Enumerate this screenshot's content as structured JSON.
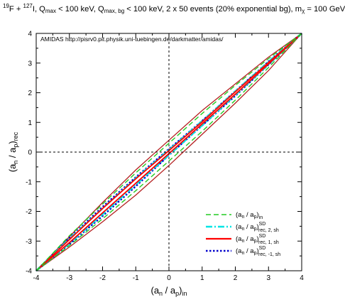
{
  "title_parts": {
    "p1": "19",
    "p2": "F + ",
    "p3": "127",
    "p4": "I, Q",
    "p5": "max",
    "p6": " < 100 keV, Q",
    "p7": "max, bg",
    "p8": " < 100 keV, 2 x 50 events (20% exponential bg), m",
    "p9": "χ",
    "p10": " = 100 GeV"
  },
  "credit": "AMIDAS   http://pisrv0.pit.physik.uni-tuebingen.de/darkmatter/amidas/",
  "colors": {
    "dark_red": "#b52020",
    "green": "#22cc22",
    "cyan": "#00e5e5",
    "red": "#ff0000",
    "blue": "#0000cc",
    "axis": "#000000"
  },
  "chart_data": {
    "type": "line",
    "xlim": [
      -4,
      4
    ],
    "ylim": [
      -4,
      4
    ],
    "xticks": [
      -4,
      -3,
      -2,
      -1,
      0,
      1,
      2,
      3,
      4
    ],
    "yticks": [
      -4,
      -3,
      -2,
      -1,
      0,
      1,
      2,
      3,
      4
    ],
    "xlabel": {
      "a": "(a",
      "b": "n",
      "c": " / a",
      "d": "p",
      "e": ")",
      "f": "in"
    },
    "ylabel": {
      "a": "(a",
      "b": "n",
      "c": " / a",
      "d": "p",
      "e": ")",
      "f": "rec"
    },
    "reference_lines": {
      "x0": 0,
      "y0": 0
    },
    "legend": [
      {
        "key": "in",
        "main": "(a",
        "s1": "n",
        "m2": " / a",
        "s2": "p",
        "m3": ")",
        "sub": "in",
        "sup": ""
      },
      {
        "key": "rec2",
        "main": "(a",
        "s1": "n",
        "m2": " / a",
        "s2": "p",
        "m3": ")",
        "sub": "rec, 2, sh",
        "sup": "SD"
      },
      {
        "key": "rec1",
        "main": "(a",
        "s1": "n",
        "m2": " / a",
        "s2": "p",
        "m3": ")",
        "sub": "rec, 1, sh",
        "sup": "SD"
      },
      {
        "key": "recm1",
        "main": "(a",
        "s1": "n",
        "m2": " / a",
        "s2": "p",
        "m3": ")",
        "sub": "rec, -1, sh",
        "sup": "SD"
      }
    ],
    "series": [
      {
        "key": "band_upper",
        "color": "#b52020",
        "style": "solid",
        "width": 1.3,
        "x": [
          -4,
          -3,
          -2,
          -1,
          0,
          1,
          2,
          3,
          4
        ],
        "y": [
          -4,
          -2.85,
          -1.7,
          -0.6,
          0.4,
          1.4,
          2.3,
          3.2,
          4
        ]
      },
      {
        "key": "band_lower",
        "color": "#b52020",
        "style": "solid",
        "width": 1.3,
        "x": [
          -4,
          -3,
          -2,
          -1,
          0,
          1,
          2,
          3,
          4
        ],
        "y": [
          -4,
          -3.2,
          -2.35,
          -1.45,
          -0.45,
          0.6,
          1.65,
          2.75,
          4
        ]
      },
      {
        "key": "blue_upper",
        "color": "#0000cc",
        "style": "dotted",
        "width": 2.6,
        "x": [
          -4,
          -3,
          -2,
          -1,
          0,
          1,
          2,
          3,
          4
        ],
        "y": [
          -4,
          -2.9,
          -1.85,
          -0.85,
          0.1,
          1.05,
          2.05,
          3.05,
          4
        ]
      },
      {
        "key": "blue_lower",
        "color": "#0000cc",
        "style": "dotted",
        "width": 2.6,
        "x": [
          -4,
          -3,
          -2,
          -1,
          0,
          1,
          2,
          3,
          4
        ],
        "y": [
          -4,
          -3.1,
          -2.15,
          -1.15,
          -0.1,
          0.9,
          1.9,
          2.95,
          4
        ]
      },
      {
        "key": "cyan_upper",
        "color": "#00e5e5",
        "style": "dashdot",
        "width": 2.4,
        "x": [
          -4,
          -3,
          -2,
          -1,
          0,
          1,
          2,
          3,
          4
        ],
        "y": [
          -4,
          -2.92,
          -1.9,
          -0.88,
          0.08,
          1.05,
          2.05,
          3.05,
          4
        ]
      },
      {
        "key": "cyan_lower",
        "color": "#00e5e5",
        "style": "dashdot",
        "width": 2.4,
        "x": [
          -4,
          -3,
          -2,
          -1,
          0,
          1,
          2,
          3,
          4
        ],
        "y": [
          -4,
          -3.08,
          -2.1,
          -1.1,
          -0.1,
          0.9,
          1.92,
          2.95,
          4
        ]
      },
      {
        "key": "red_upper",
        "color": "#ff0000",
        "style": "solid",
        "width": 1.8,
        "x": [
          -4,
          -3,
          -2,
          -1,
          0,
          1,
          2,
          3,
          4
        ],
        "y": [
          -4,
          -2.95,
          -1.9,
          -0.9,
          0.05,
          1.02,
          2.03,
          3.02,
          4
        ]
      },
      {
        "key": "red_lower",
        "color": "#ff0000",
        "style": "solid",
        "width": 1.8,
        "x": [
          -4,
          -3,
          -2,
          -1,
          0,
          1,
          2,
          3,
          4
        ],
        "y": [
          -4,
          -3.05,
          -2.05,
          -1.05,
          -0.05,
          0.95,
          1.95,
          2.97,
          4
        ]
      },
      {
        "key": "green_upper",
        "color": "#22cc22",
        "style": "dashed",
        "width": 1.4,
        "x": [
          -4,
          -3,
          -2,
          -1,
          0,
          1,
          2,
          3,
          4
        ],
        "y": [
          -4,
          -2.82,
          -1.75,
          -0.7,
          0.3,
          1.3,
          2.25,
          3.15,
          4
        ]
      },
      {
        "key": "green_lower",
        "color": "#22cc22",
        "style": "dashed",
        "width": 1.4,
        "x": [
          -4,
          -3,
          -2,
          -1,
          0,
          1,
          2,
          3,
          4
        ],
        "y": [
          -4,
          -3.15,
          -2.25,
          -1.3,
          -0.3,
          0.7,
          1.75,
          2.85,
          4
        ]
      }
    ]
  }
}
